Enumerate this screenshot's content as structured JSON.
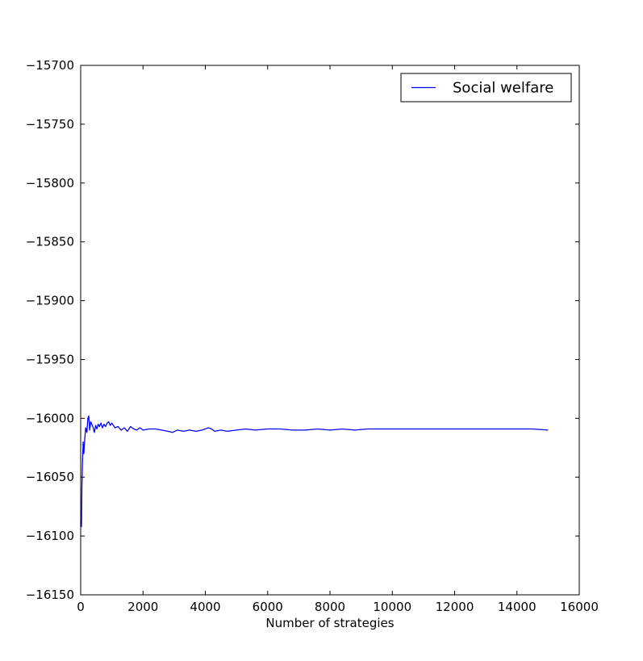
{
  "chart_data": {
    "type": "line",
    "title": "",
    "xlabel": "Number of strategies",
    "ylabel": "",
    "xlim": [
      0,
      16000
    ],
    "ylim": [
      -16150,
      -15700
    ],
    "x_ticks": [
      0,
      2000,
      4000,
      6000,
      8000,
      10000,
      12000,
      14000,
      16000
    ],
    "y_ticks": [
      -15700,
      -15750,
      -15800,
      -15850,
      -15900,
      -15950,
      -16000,
      -16050,
      -16100,
      -16150
    ],
    "x_tick_labels": [
      "0",
      "2000",
      "4000",
      "6000",
      "8000",
      "10000",
      "12000",
      "14000",
      "16000"
    ],
    "y_tick_labels": [
      "−15700",
      "−15750",
      "−15800",
      "−15850",
      "−15900",
      "−15950",
      "−16000",
      "−16050",
      "−16100",
      "−16150"
    ],
    "legend": {
      "position": "top-right"
    },
    "grid": false,
    "series": [
      {
        "name": "Social welfare",
        "color": "#0000ff",
        "x": [
          0,
          10,
          25,
          40,
          55,
          80,
          100,
          130,
          160,
          200,
          230,
          260,
          290,
          320,
          360,
          400,
          440,
          480,
          520,
          560,
          600,
          650,
          700,
          750,
          800,
          850,
          900,
          950,
          1000,
          1100,
          1200,
          1300,
          1400,
          1500,
          1600,
          1700,
          1800,
          1900,
          2000,
          2200,
          2400,
          2600,
          2800,
          2950,
          3100,
          3300,
          3500,
          3700,
          3900,
          4100,
          4200,
          4300,
          4500,
          4700,
          5000,
          5300,
          5600,
          6000,
          6400,
          6800,
          7200,
          7600,
          8000,
          8400,
          8800,
          9200,
          9600,
          10000,
          10500,
          11000,
          11500,
          12000,
          12500,
          13000,
          13500,
          14000,
          14500,
          15000
        ],
        "y": [
          -16090,
          -16080,
          -16092,
          -16060,
          -16040,
          -16020,
          -16030,
          -16018,
          -16008,
          -16012,
          -16000,
          -15998,
          -16010,
          -16003,
          -16005,
          -16008,
          -16012,
          -16006,
          -16009,
          -16005,
          -16007,
          -16004,
          -16008,
          -16005,
          -16007,
          -16004,
          -16003,
          -16006,
          -16004,
          -16008,
          -16007,
          -16010,
          -16008,
          -16011,
          -16007,
          -16009,
          -16010,
          -16008,
          -16010,
          -16009,
          -16009,
          -16010,
          -16011,
          -16012,
          -16010,
          -16011,
          -16010,
          -16011,
          -16010,
          -16008,
          -16009,
          -16011,
          -16010,
          -16011,
          -16010,
          -16009,
          -16010,
          -16009,
          -16009,
          -16010,
          -16010,
          -16009,
          -16010,
          -16009,
          -16010,
          -16009,
          -16009,
          -16009,
          -16009,
          -16009,
          -16009,
          -16009,
          -16009,
          -16009,
          -16009,
          -16009,
          -16009,
          -16010
        ]
      }
    ]
  }
}
